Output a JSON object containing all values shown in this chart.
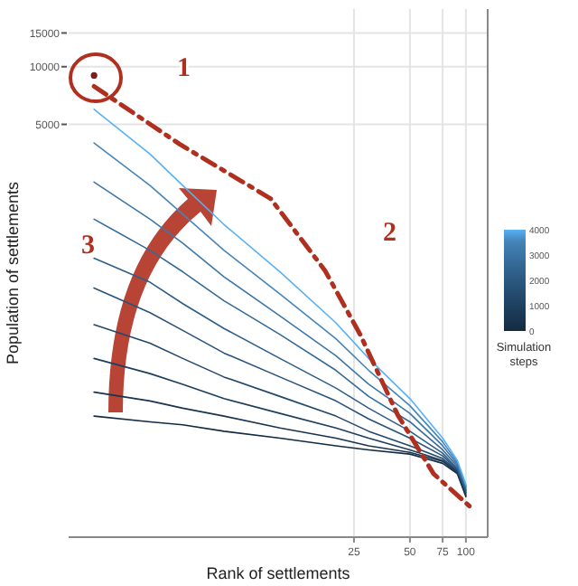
{
  "chart_data": {
    "type": "line",
    "xlabel": "Rank of settlements",
    "ylabel": "Population of settlements",
    "log": "xy",
    "grid": true,
    "marker": "none",
    "line_style": "solid",
    "x": [
      1,
      2,
      3,
      5,
      10,
      20,
      30,
      50,
      75,
      90,
      100
    ],
    "xlim": [
      0.73,
      131
    ],
    "xticks": [
      25,
      50,
      75,
      100
    ],
    "ylim": [
      35,
      20000
    ],
    "yticks": [
      5000,
      10000,
      15000
    ],
    "clabel": "Simulation\nsteps",
    "clim": [
      0,
      4000
    ],
    "cticks": [
      0,
      1000,
      2000,
      3000,
      4000
    ],
    "series": [
      {
        "color": "#132b43",
        "values": [
          150,
          140,
          135,
          125,
          115,
          105,
          100,
          95,
          85,
          75,
          57
        ]
      },
      {
        "color": "#18344f",
        "values": [
          200,
          180,
          165,
          150,
          130,
          115,
          105,
          97,
          87,
          76,
          58
        ]
      },
      {
        "color": "#1d3e5d",
        "values": [
          300,
          250,
          220,
          185,
          155,
          130,
          115,
          100,
          88,
          77,
          59
        ]
      },
      {
        "color": "#22486b",
        "values": [
          450,
          360,
          300,
          240,
          190,
          150,
          125,
          105,
          90,
          78,
          60
        ]
      },
      {
        "color": "#285379",
        "values": [
          700,
          520,
          420,
          320,
          240,
          180,
          145,
          115,
          93,
          79,
          61
        ]
      },
      {
        "color": "#2e5e88",
        "values": [
          1000,
          750,
          580,
          430,
          300,
          210,
          165,
          125,
          96,
          80,
          62
        ]
      },
      {
        "color": "#356a98",
        "values": [
          1600,
          1100,
          850,
          600,
          400,
          260,
          190,
          140,
          100,
          82,
          63
        ]
      },
      {
        "color": "#3c77a8",
        "values": [
          2500,
          1600,
          1200,
          800,
          500,
          310,
          220,
          155,
          105,
          84,
          64
        ]
      },
      {
        "color": "#4585b9",
        "values": [
          4000,
          2400,
          1700,
          1100,
          650,
          380,
          260,
          170,
          110,
          86,
          65
        ]
      },
      {
        "color": "#56b1f7",
        "values": [
          6000,
          3500,
          2400,
          1500,
          850,
          460,
          300,
          185,
          115,
          88,
          66
        ]
      },
      {
        "type": "scatter",
        "marker": "circle",
        "color": "#7a1f1f",
        "x": [
          1
        ],
        "values": [
          9000
        ]
      },
      {
        "type": "line",
        "line_style": "dashed",
        "color": "#b0301f",
        "x": [
          1,
          2.9,
          8.9,
          17.5,
          27,
          43,
          67,
          109
        ],
        "values": [
          7900,
          3930,
          2050,
          860,
          400,
          152,
          75,
          49
        ]
      }
    ],
    "annotations": [
      "1",
      "2",
      "3"
    ]
  }
}
